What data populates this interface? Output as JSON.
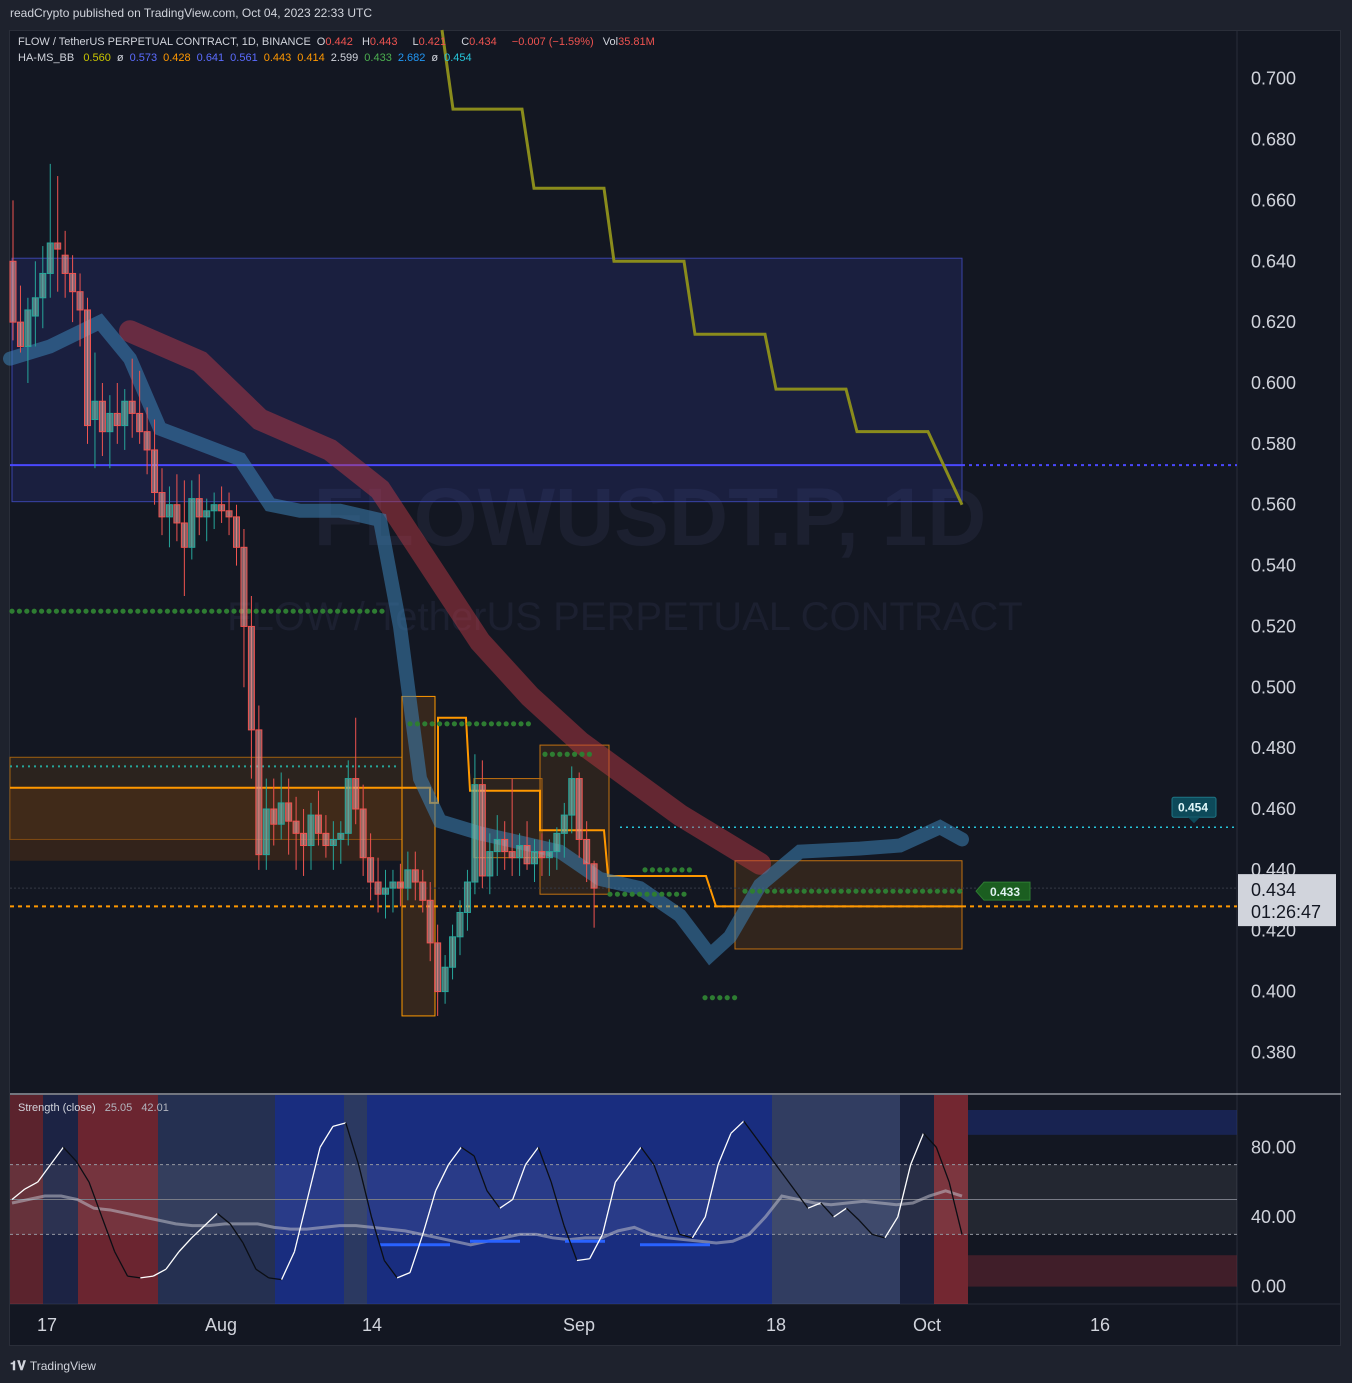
{
  "publish_line": "readCrypto published on TradingView.com, Oct 04, 2023 22:33 UTC",
  "header": {
    "symbol": "FLOW / TetherUS PERPETUAL CONTRACT, 1D, BINANCE",
    "o_label": "O",
    "o": "0.442",
    "h_label": "H",
    "h": "0.443",
    "l_label": "L",
    "l": "0.421",
    "c_label": "C",
    "c": "0.434",
    "change": "−0.007 (−1.59%)",
    "vol_label": "Vol",
    "vol": "35.81M"
  },
  "indicator": {
    "name": "HA-MS_BB",
    "values": [
      "0.560",
      "ø",
      "0.573",
      "0.428",
      "0.641",
      "0.561",
      "0.443",
      "0.414",
      "2.599",
      "0.433",
      "2.682",
      "ø",
      "0.454"
    ],
    "colors": [
      "#c8c400",
      "#d1d4dc",
      "#5b6cff",
      "#ff9800",
      "#5b6cff",
      "#5b6cff",
      "#ff9800",
      "#ff9800",
      "#d1d4dc",
      "#4caf50",
      "#2196f3",
      "#d1d4dc",
      "#26c6da"
    ]
  },
  "watermark": {
    "line1": "FLOWUSDT.P, 1D",
    "line2": "FLOW / TetherUS PERPETUAL CONTRACT"
  },
  "price_labels": {
    "last": "0.434",
    "countdown": "01:26:47",
    "green_tag": "0.433",
    "teal_tag": "0.454"
  },
  "oscillator": {
    "title": "Strength (close)",
    "v1": "25.05",
    "v2": "42.01"
  },
  "chart_data": {
    "type": "candlestick",
    "y_axis": {
      "ticks": [
        "0.700",
        "0.680",
        "0.660",
        "0.640",
        "0.620",
        "0.600",
        "0.580",
        "0.560",
        "0.540",
        "0.520",
        "0.500",
        "0.480",
        "0.460",
        "0.440",
        "0.420",
        "0.400",
        "0.380"
      ],
      "ylim": [
        0.367,
        0.716
      ]
    },
    "x_axis": {
      "ticks": [
        "17",
        "Aug",
        "14",
        "Sep",
        "18",
        "Oct",
        "16"
      ]
    },
    "osc_axis": {
      "ticks": [
        "80.00",
        "40.00",
        "0.00"
      ],
      "ylim": [
        -10,
        110
      ]
    },
    "candles": [
      [
        0.64,
        0.66,
        0.614,
        0.62
      ],
      [
        0.62,
        0.632,
        0.61,
        0.612
      ],
      [
        0.612,
        0.628,
        0.6,
        0.624
      ],
      [
        0.622,
        0.64,
        0.612,
        0.628
      ],
      [
        0.628,
        0.645,
        0.618,
        0.636
      ],
      [
        0.636,
        0.672,
        0.628,
        0.646
      ],
      [
        0.646,
        0.668,
        0.63,
        0.644
      ],
      [
        0.642,
        0.65,
        0.628,
        0.636
      ],
      [
        0.636,
        0.642,
        0.62,
        0.63
      ],
      [
        0.63,
        0.636,
        0.612,
        0.624
      ],
      [
        0.624,
        0.628,
        0.58,
        0.586
      ],
      [
        0.588,
        0.61,
        0.572,
        0.594
      ],
      [
        0.594,
        0.6,
        0.576,
        0.584
      ],
      [
        0.584,
        0.596,
        0.572,
        0.59
      ],
      [
        0.59,
        0.6,
        0.58,
        0.586
      ],
      [
        0.586,
        0.598,
        0.578,
        0.594
      ],
      [
        0.594,
        0.608,
        0.582,
        0.59
      ],
      [
        0.59,
        0.604,
        0.58,
        0.584
      ],
      [
        0.584,
        0.592,
        0.57,
        0.578
      ],
      [
        0.578,
        0.588,
        0.56,
        0.564
      ],
      [
        0.564,
        0.572,
        0.55,
        0.556
      ],
      [
        0.556,
        0.566,
        0.546,
        0.56
      ],
      [
        0.56,
        0.57,
        0.548,
        0.554
      ],
      [
        0.554,
        0.568,
        0.53,
        0.546
      ],
      [
        0.546,
        0.568,
        0.542,
        0.562
      ],
      [
        0.562,
        0.57,
        0.55,
        0.556
      ],
      [
        0.556,
        0.562,
        0.548,
        0.558
      ],
      [
        0.558,
        0.564,
        0.552,
        0.56
      ],
      [
        0.56,
        0.566,
        0.554,
        0.558
      ],
      [
        0.558,
        0.564,
        0.55,
        0.556
      ],
      [
        0.556,
        0.56,
        0.54,
        0.546
      ],
      [
        0.546,
        0.552,
        0.5,
        0.52
      ],
      [
        0.52,
        0.53,
        0.47,
        0.486
      ],
      [
        0.486,
        0.494,
        0.44,
        0.445
      ],
      [
        0.445,
        0.47,
        0.44,
        0.46
      ],
      [
        0.46,
        0.47,
        0.448,
        0.455
      ],
      [
        0.455,
        0.472,
        0.45,
        0.462
      ],
      [
        0.462,
        0.47,
        0.445,
        0.456
      ],
      [
        0.456,
        0.464,
        0.44,
        0.452
      ],
      [
        0.452,
        0.46,
        0.438,
        0.448
      ],
      [
        0.448,
        0.462,
        0.44,
        0.458
      ],
      [
        0.458,
        0.466,
        0.448,
        0.452
      ],
      [
        0.452,
        0.458,
        0.444,
        0.448
      ],
      [
        0.448,
        0.456,
        0.44,
        0.45
      ],
      [
        0.45,
        0.456,
        0.442,
        0.452
      ],
      [
        0.452,
        0.476,
        0.448,
        0.47
      ],
      [
        0.47,
        0.49,
        0.455,
        0.46
      ],
      [
        0.46,
        0.468,
        0.438,
        0.444
      ],
      [
        0.444,
        0.452,
        0.43,
        0.436
      ],
      [
        0.436,
        0.444,
        0.426,
        0.432
      ],
      [
        0.432,
        0.44,
        0.424,
        0.434
      ],
      [
        0.434,
        0.44,
        0.426,
        0.436
      ],
      [
        0.436,
        0.442,
        0.428,
        0.434
      ],
      [
        0.434,
        0.446,
        0.43,
        0.44
      ],
      [
        0.44,
        0.446,
        0.43,
        0.436
      ],
      [
        0.436,
        0.44,
        0.426,
        0.43
      ],
      [
        0.43,
        0.436,
        0.41,
        0.416
      ],
      [
        0.416,
        0.422,
        0.392,
        0.4
      ],
      [
        0.4,
        0.412,
        0.396,
        0.408
      ],
      [
        0.408,
        0.422,
        0.404,
        0.418
      ],
      [
        0.418,
        0.43,
        0.412,
        0.426
      ],
      [
        0.426,
        0.44,
        0.42,
        0.436
      ],
      [
        0.436,
        0.478,
        0.432,
        0.468
      ],
      [
        0.468,
        0.476,
        0.434,
        0.438
      ],
      [
        0.438,
        0.452,
        0.432,
        0.446
      ],
      [
        0.446,
        0.458,
        0.438,
        0.45
      ],
      [
        0.45,
        0.456,
        0.44,
        0.446
      ],
      [
        0.446,
        0.47,
        0.438,
        0.444
      ],
      [
        0.444,
        0.452,
        0.438,
        0.448
      ],
      [
        0.448,
        0.456,
        0.44,
        0.442
      ],
      [
        0.442,
        0.45,
        0.436,
        0.446
      ],
      [
        0.446,
        0.452,
        0.438,
        0.444
      ],
      [
        0.444,
        0.45,
        0.438,
        0.446
      ],
      [
        0.446,
        0.454,
        0.44,
        0.452
      ],
      [
        0.452,
        0.462,
        0.444,
        0.458
      ],
      [
        0.458,
        0.474,
        0.452,
        0.47
      ],
      [
        0.47,
        0.472,
        0.444,
        0.45
      ],
      [
        0.45,
        0.456,
        0.436,
        0.442
      ],
      [
        0.442,
        0.443,
        0.421,
        0.434
      ]
    ],
    "ha_ms_bb": {
      "upper_step_line": {
        "x": [
          0,
          8,
          12,
          20,
          24,
          35,
          44
        ],
        "y": [
          0.716,
          0.69,
          0.664,
          0.64,
          0.616,
          0.598,
          0.584
        ]
      },
      "range_box": {
        "top": 0.641,
        "bottom": 0.561,
        "mid": 0.573
      },
      "lower_box": {
        "top": 0.443,
        "bottom": 0.414,
        "mid": 0.428
      }
    },
    "strength_line": [
      50,
      56,
      60,
      70,
      80,
      72,
      60,
      40,
      20,
      6,
      5,
      6,
      10,
      20,
      28,
      35,
      42,
      36,
      25,
      10,
      5,
      4,
      20,
      50,
      80,
      92,
      94,
      70,
      40,
      15,
      5,
      8,
      30,
      55,
      70,
      80,
      75,
      55,
      45,
      50,
      70,
      80,
      60,
      35,
      15,
      16,
      30,
      60,
      70,
      80,
      70,
      50,
      30,
      28,
      40,
      70,
      88,
      95,
      85,
      75,
      65,
      55,
      45,
      48,
      40,
      45,
      38,
      30,
      28,
      40,
      70,
      88,
      80,
      60,
      30
    ],
    "strength_smooth": [
      48,
      50,
      52,
      52,
      50,
      45,
      44,
      42,
      40,
      38,
      36,
      35,
      35,
      36,
      36,
      36,
      34,
      33,
      33,
      34,
      35,
      35,
      34,
      33,
      32,
      30,
      28,
      26,
      24,
      26,
      28,
      30,
      30,
      28,
      27,
      28,
      28,
      32,
      34,
      30,
      28,
      27,
      26,
      25,
      26,
      30,
      40,
      52,
      50,
      48,
      47,
      48,
      49,
      48,
      47,
      48,
      52,
      55,
      52
    ]
  }
}
